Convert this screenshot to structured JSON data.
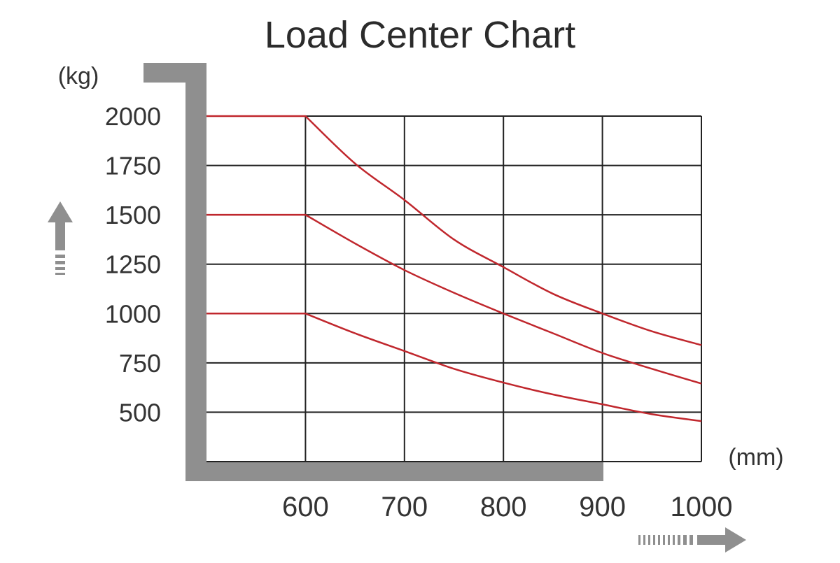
{
  "chart_data": {
    "type": "line",
    "title": "Load Center Chart",
    "ylabel": "(kg)",
    "xlabel": "(mm)",
    "x_ticks": [
      600,
      700,
      800,
      900,
      1000
    ],
    "y_ticks": [
      500,
      750,
      1000,
      1250,
      1500,
      1750,
      2000
    ],
    "y_tick_labels": [
      "500",
      "750",
      "1000",
      "1250",
      "1500",
      "1750",
      "2000"
    ],
    "x_tick_labels": [
      "600",
      "700",
      "800",
      "900",
      "1000"
    ],
    "xlim": [
      500,
      1000
    ],
    "ylim": [
      250,
      2000
    ],
    "grid": true,
    "line_color": "#c0272d",
    "series": [
      {
        "x": [
          500,
          600,
          650,
          700,
          750,
          800,
          850,
          900,
          950,
          1000
        ],
        "values": [
          2000,
          2000,
          1760,
          1575,
          1375,
          1235,
          1100,
          1000,
          910,
          840
        ]
      },
      {
        "x": [
          500,
          600,
          650,
          700,
          750,
          800,
          850,
          900,
          950,
          1000
        ],
        "values": [
          1500,
          1500,
          1355,
          1220,
          1105,
          1000,
          900,
          800,
          720,
          645
        ]
      },
      {
        "x": [
          500,
          600,
          650,
          700,
          750,
          800,
          850,
          900,
          950,
          1000
        ],
        "values": [
          1000,
          1000,
          900,
          810,
          720,
          650,
          590,
          540,
          490,
          455
        ]
      }
    ]
  }
}
